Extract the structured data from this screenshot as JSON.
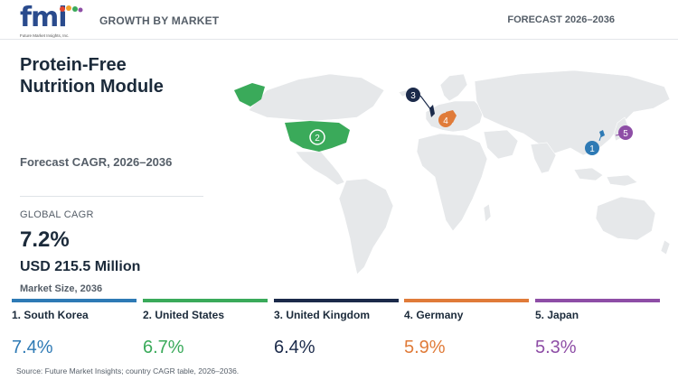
{
  "brand": {
    "logo_text": "fmi",
    "logo_tagline": "Future Market Insights, Inc."
  },
  "header": {
    "left_label": "GROWTH BY MARKET",
    "right_label": "FORECAST 2026–2036"
  },
  "title": {
    "line1": "Protein-Free",
    "line2": "Nutrition Module"
  },
  "cagr_period": "Forecast CAGR, 2026–2036",
  "global": {
    "label": "GLOBAL CAGR",
    "value": "7.2%",
    "market_size": "USD 215.5 Million",
    "market_size_label": "Market Size, 2036"
  },
  "colors": {
    "rank1": "#2e7ab5",
    "rank2": "#3aaa5a",
    "rank3": "#1b2a4a",
    "rank4": "#e07b39",
    "rank5": "#8e4ea6",
    "land": "#e6e8ea"
  },
  "countries": [
    {
      "rank": "1",
      "name": "1. South Korea",
      "cagr": "7.4%",
      "color": "#2e7ab5",
      "icon": "south-korea-marker"
    },
    {
      "rank": "2",
      "name": "2. United States",
      "cagr": "6.7%",
      "color": "#3aaa5a",
      "icon": "united-states-marker"
    },
    {
      "rank": "3",
      "name": "3. United Kingdom",
      "cagr": "6.4%",
      "color": "#1b2a4a",
      "icon": "united-kingdom-marker"
    },
    {
      "rank": "4",
      "name": "4. Germany",
      "cagr": "5.9%",
      "color": "#e07b39",
      "icon": "germany-marker"
    },
    {
      "rank": "5",
      "name": "5. Japan",
      "cagr": "5.3%",
      "color": "#8e4ea6",
      "icon": "japan-marker"
    }
  ],
  "source": "Source: Future Market Insights; country CAGR table, 2026–2036."
}
